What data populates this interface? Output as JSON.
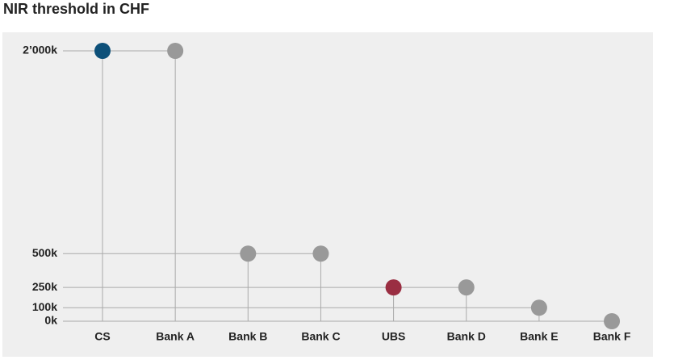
{
  "chart_data": {
    "type": "lollipop",
    "title": "NIR threshold in CHF",
    "categories": [
      "CS",
      "Bank A",
      "Bank B",
      "Bank C",
      "UBS",
      "Bank D",
      "Bank E",
      "Bank F"
    ],
    "values": [
      2000,
      2000,
      500,
      500,
      250,
      250,
      100,
      0
    ],
    "colors": [
      "#0d5079",
      "#999999",
      "#999999",
      "#999999",
      "#9a2e42",
      "#999999",
      "#999999",
      "#999999"
    ],
    "ylim": [
      0,
      2000
    ],
    "yticks": [
      {
        "value": 0,
        "label": "0k"
      },
      {
        "value": 100,
        "label": "100k"
      },
      {
        "value": 250,
        "label": "250k"
      },
      {
        "value": 500,
        "label": "500k"
      },
      {
        "value": 2000,
        "label": "2’000k"
      }
    ]
  }
}
